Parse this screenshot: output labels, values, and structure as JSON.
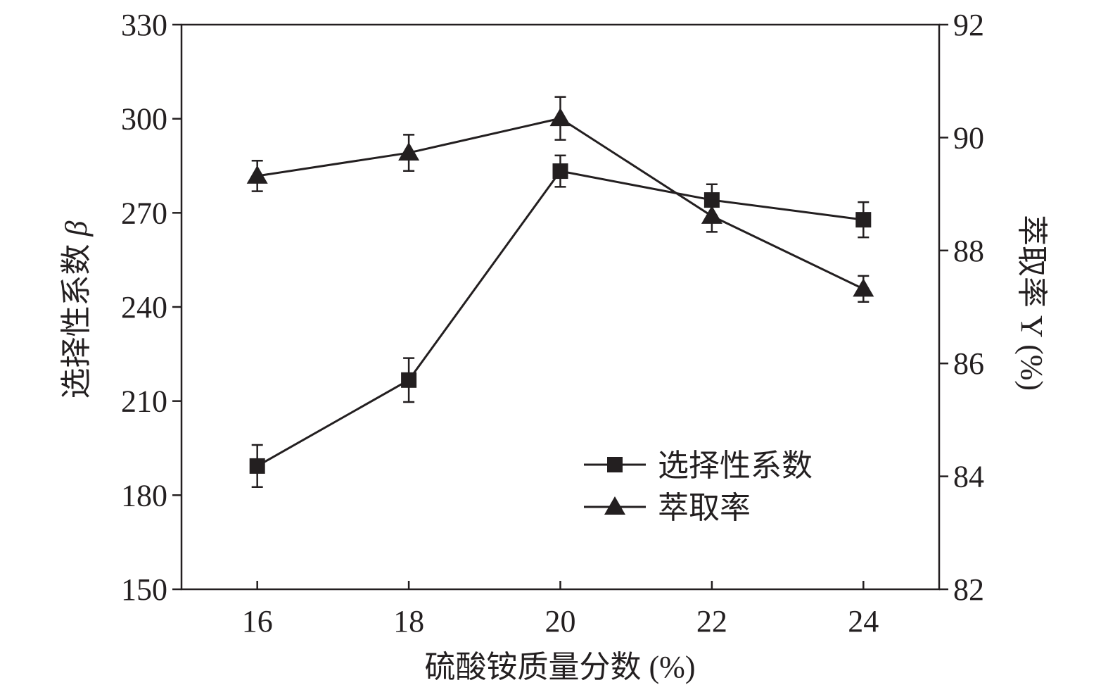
{
  "chart_data": {
    "type": "line",
    "title": "",
    "xlabel": "硫酸铵质量分数 (%)",
    "ylabel_left": "选择性系数",
    "ylabel_left_symbol": "β",
    "ylabel_right": "萃取率 Y (%)",
    "x": [
      16,
      18,
      20,
      22,
      24
    ],
    "xlim": [
      15,
      25
    ],
    "xticks": [
      "16",
      "18",
      "20",
      "22",
      "24"
    ],
    "ylim_left": [
      150,
      330
    ],
    "yticks_left": [
      "150",
      "180",
      "210",
      "240",
      "270",
      "300",
      "330"
    ],
    "ylim_right": [
      82,
      92
    ],
    "yticks_right": [
      "82",
      "84",
      "86",
      "88",
      "90",
      "92"
    ],
    "legend_position": "lower-right",
    "series": [
      {
        "name": "选择性系数",
        "axis": "left",
        "marker": "square",
        "values": [
          189.3,
          216.7,
          283.3,
          274.1,
          267.8
        ],
        "errors": [
          6.7,
          7.0,
          5.0,
          5.0,
          5.6
        ]
      },
      {
        "name": "萃取率",
        "axis": "right",
        "marker": "triangle",
        "values": [
          89.32,
          89.73,
          90.34,
          88.61,
          87.32
        ],
        "errors": [
          0.27,
          0.32,
          0.38,
          0.28,
          0.23
        ]
      }
    ],
    "color": "#231f20"
  }
}
